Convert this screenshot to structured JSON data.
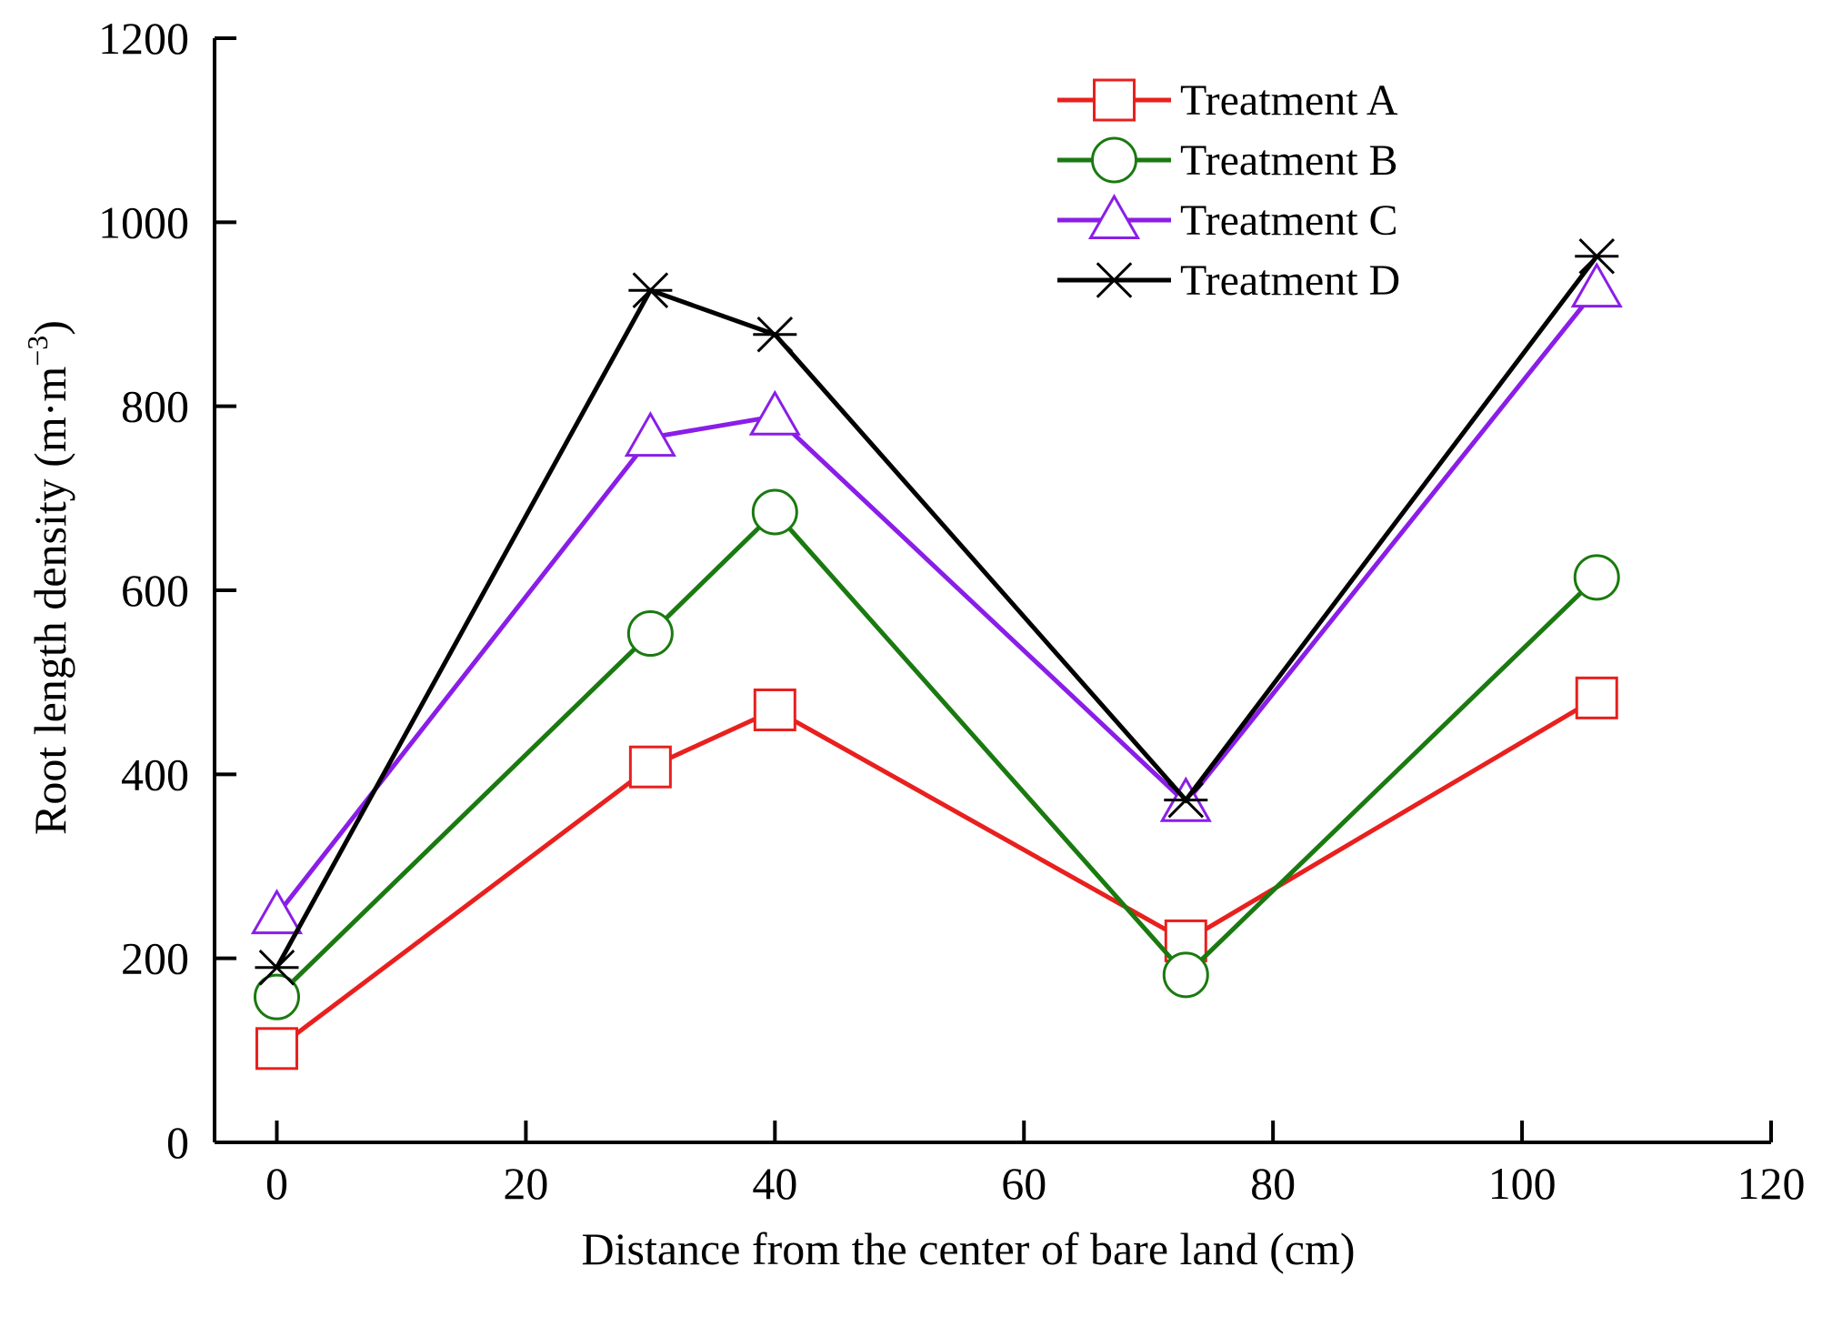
{
  "chart_data": {
    "type": "line",
    "title": "",
    "xlabel": "Distance from the center of bare land (cm)",
    "ylabel_main": "Root length density (m·m",
    "ylabel_sup": "−3",
    "ylabel_close": ")",
    "xlim": [
      -5,
      120
    ],
    "ylim": [
      0,
      1200
    ],
    "xticks": [
      0,
      20,
      40,
      60,
      80,
      100,
      120
    ],
    "yticks": [
      0,
      200,
      400,
      600,
      800,
      1000,
      1200
    ],
    "x": [
      0,
      30,
      40,
      73,
      106
    ],
    "legend_position": "top-right",
    "series": [
      {
        "name": "Treatment A",
        "marker": "square",
        "color": "#e8201e",
        "values": [
          102,
          408,
          470,
          219,
          483
        ]
      },
      {
        "name": "Treatment B",
        "marker": "circle",
        "color": "#1a7a10",
        "values": [
          158,
          553,
          685,
          182,
          614
        ]
      },
      {
        "name": "Treatment C",
        "marker": "triangle",
        "color": "#8a1ee8",
        "values": [
          247,
          766,
          789,
          369,
          928
        ]
      },
      {
        "name": "Treatment D",
        "marker": "asterisk",
        "color": "#000000",
        "values": [
          190,
          926,
          878,
          372,
          963
        ]
      }
    ]
  }
}
